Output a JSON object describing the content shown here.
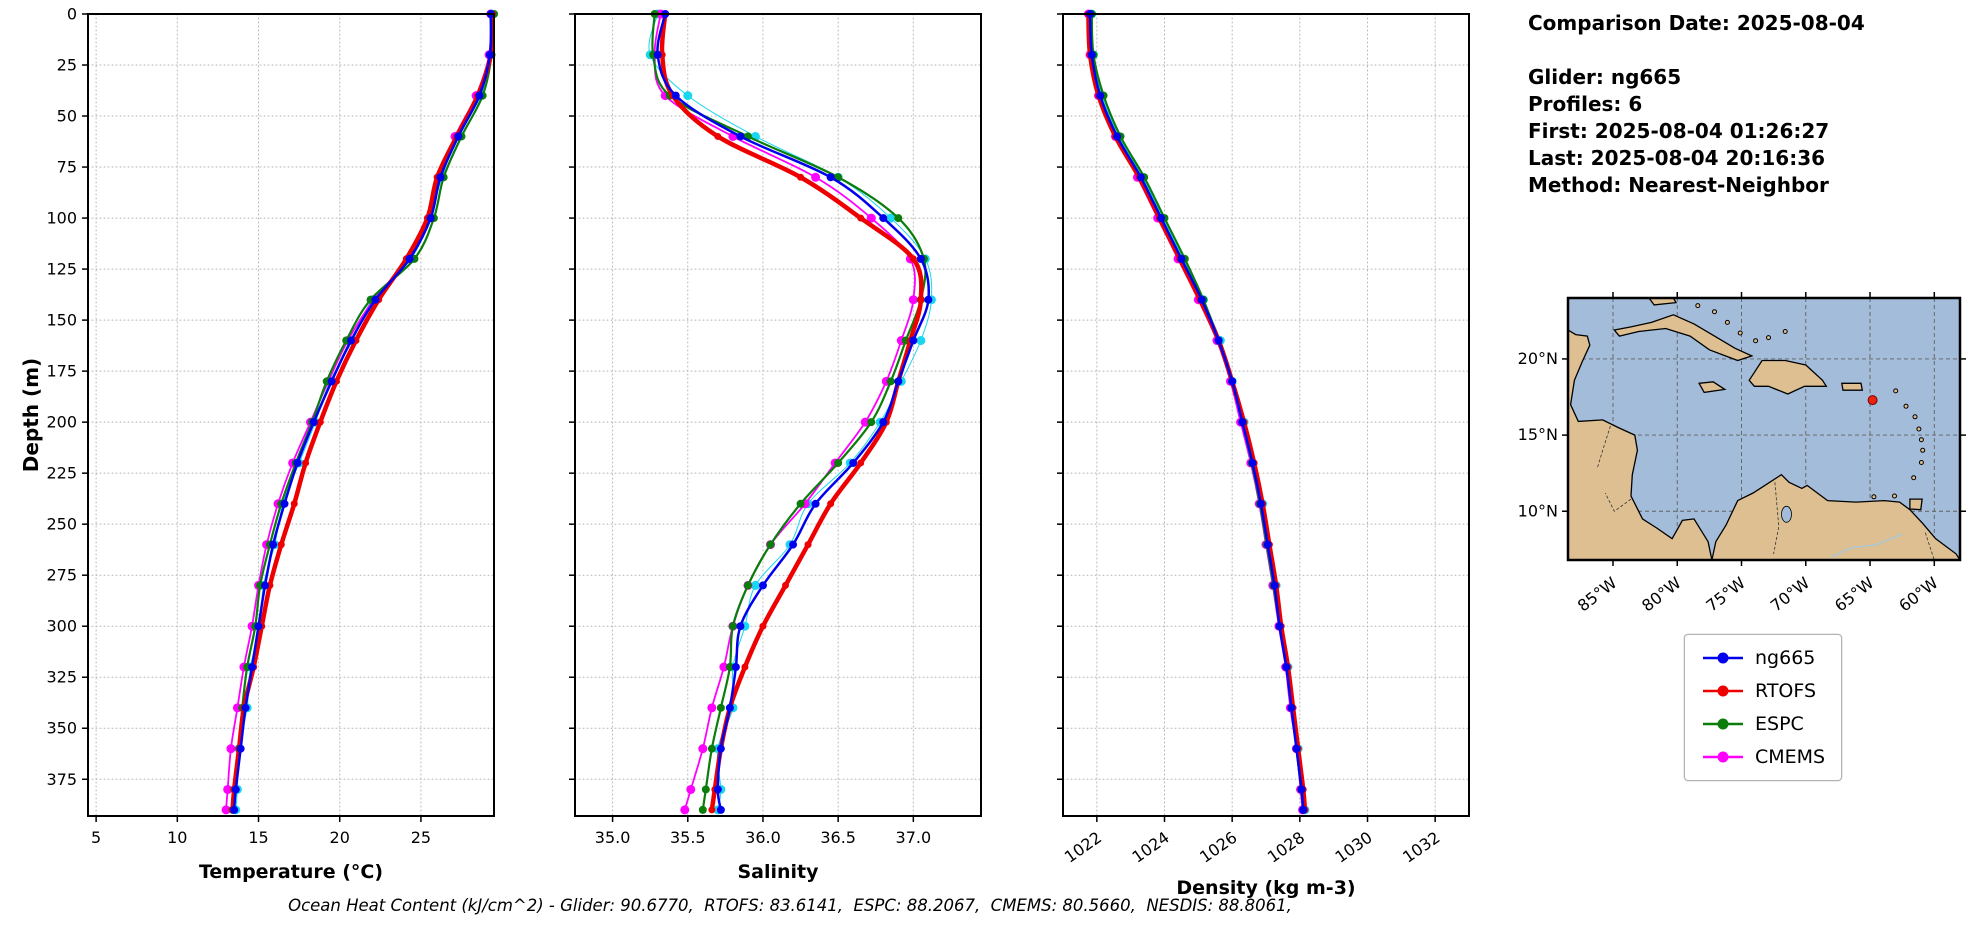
{
  "info_panel": {
    "lines": [
      "Comparison Date: 2025-08-04",
      "",
      "Glider: ng665",
      "Profiles: 6",
      "First: 2025-08-04 01:26:27",
      "Last: 2025-08-04 20:16:36",
      "Method: Nearest-Neighbor"
    ]
  },
  "footer": {
    "text": "Ocean Heat Content (kJ/cm^2) - Glider: 90.6770,  RTOFS: 83.6141,  ESPC: 88.2067,  CMEMS: 80.5660,  NESDIS: 88.8061,"
  },
  "legend": {
    "items": [
      {
        "label": "ng665",
        "color": "#0000ee"
      },
      {
        "label": "RTOFS",
        "color": "#ee0000"
      },
      {
        "label": "ESPC",
        "color": "#0a7d0a"
      },
      {
        "label": "CMEMS",
        "color": "#ff00ff"
      }
    ]
  },
  "depth_axis": {
    "label": "Depth (m)",
    "max": 393,
    "ticks": [
      0,
      25,
      50,
      75,
      100,
      125,
      150,
      175,
      200,
      225,
      250,
      275,
      300,
      325,
      350,
      375
    ]
  },
  "map": {
    "colors": {
      "ocean": "#a3bcd9",
      "land": "#ddbf92"
    },
    "lat_ticks": [
      {
        "value": 20,
        "label": "20°N"
      },
      {
        "value": 15,
        "label": "15°N"
      },
      {
        "value": 10,
        "label": "10°N"
      }
    ],
    "lon_ticks": [
      {
        "value": -85,
        "label": "85°W"
      },
      {
        "value": -80,
        "label": "80°W"
      },
      {
        "value": -75,
        "label": "75°W"
      },
      {
        "value": -70,
        "label": "70°W"
      },
      {
        "value": -65,
        "label": "65°W"
      },
      {
        "value": -60,
        "label": "60°W"
      }
    ],
    "marker": {
      "lon": -64.8,
      "lat": 17.3,
      "color": "#e8240f"
    }
  },
  "chart_data": [
    {
      "id": "temperature",
      "type": "line",
      "xlabel": "Temperature (°C)",
      "ylabel": "Depth (m)",
      "y_inverted": true,
      "ylim": [
        0,
        393
      ],
      "xlim": [
        4.5,
        29.5
      ],
      "x_ticks": {
        "values": [
          5,
          10,
          15,
          20,
          25
        ],
        "labels": [
          "5",
          "10",
          "15",
          "20",
          "25"
        ],
        "rotate": 0
      },
      "depths": [
        0,
        20,
        40,
        60,
        80,
        100,
        120,
        140,
        160,
        180,
        200,
        220,
        240,
        260,
        280,
        300,
        320,
        340,
        360,
        380,
        390
      ],
      "series": [
        {
          "name": "glider-raw",
          "color": "#18d7ee",
          "line_width": 1,
          "marker_r": 4.5,
          "values": [
            29.35,
            29.2,
            28.7,
            27.2,
            26.3,
            25.5,
            24.4,
            22.0,
            20.8,
            19.4,
            18.5,
            17.5,
            16.5,
            16.0,
            15.3,
            15.1,
            14.5,
            14.3,
            13.8,
            13.7,
            13.6
          ]
        },
        {
          "name": "CMEMS",
          "color": "#ff00ff",
          "line_width": 1.8,
          "marker_r": 4.5,
          "values": [
            29.3,
            29.2,
            28.4,
            27.1,
            26.1,
            25.5,
            24.2,
            22.1,
            20.5,
            19.3,
            18.2,
            17.1,
            16.2,
            15.5,
            15.0,
            14.6,
            14.1,
            13.7,
            13.3,
            13.1,
            13.0
          ]
        },
        {
          "name": "ESPC",
          "color": "#0a7d0a",
          "line_width": 2.2,
          "marker_r": 4,
          "values": [
            29.5,
            29.35,
            28.8,
            27.5,
            26.4,
            25.8,
            24.6,
            21.9,
            20.4,
            19.2,
            18.3,
            17.3,
            16.4,
            15.7,
            15.1,
            14.8,
            14.3,
            14.0,
            13.8,
            13.5,
            13.4
          ]
        },
        {
          "name": "RTOFS",
          "color": "#ee0000",
          "line_width": 4.5,
          "marker_r": 3.5,
          "values": [
            29.4,
            29.3,
            28.5,
            27.2,
            26.0,
            25.4,
            24.1,
            22.4,
            21.0,
            19.8,
            18.8,
            17.9,
            17.2,
            16.4,
            15.7,
            15.2,
            14.7,
            14.1,
            13.8,
            13.5,
            13.4
          ]
        },
        {
          "name": "ng665",
          "color": "#0000ee",
          "line_width": 2.5,
          "marker_r": 4,
          "values": [
            29.3,
            29.25,
            28.6,
            27.3,
            26.2,
            25.6,
            24.3,
            22.2,
            20.7,
            19.5,
            18.4,
            17.4,
            16.6,
            15.9,
            15.4,
            15.0,
            14.6,
            14.2,
            13.9,
            13.6,
            13.5
          ]
        }
      ]
    },
    {
      "id": "salinity",
      "type": "line",
      "xlabel": "Salinity",
      "ylabel": "Depth (m)",
      "y_inverted": true,
      "ylim": [
        0,
        393
      ],
      "xlim": [
        34.75,
        37.45
      ],
      "x_ticks": {
        "values": [
          35.0,
          35.5,
          36.0,
          36.5,
          37.0
        ],
        "labels": [
          "35.0",
          "35.5",
          "36.0",
          "36.5",
          "37.0"
        ],
        "rotate": 0
      },
      "depths": [
        0,
        20,
        40,
        60,
        80,
        100,
        120,
        140,
        160,
        180,
        200,
        220,
        240,
        260,
        280,
        300,
        320,
        340,
        360,
        380,
        390
      ],
      "series": [
        {
          "name": "glider-raw",
          "color": "#18d7ee",
          "line_width": 1,
          "marker_r": 4.5,
          "values": [
            35.3,
            35.25,
            35.5,
            35.95,
            36.5,
            36.85,
            37.08,
            37.12,
            37.05,
            36.92,
            36.78,
            36.58,
            36.3,
            36.18,
            35.95,
            35.88,
            35.8,
            35.8,
            35.7,
            35.72,
            35.7
          ]
        },
        {
          "name": "CMEMS",
          "color": "#ff00ff",
          "line_width": 1.8,
          "marker_r": 4.5,
          "values": [
            35.32,
            35.28,
            35.35,
            35.8,
            36.35,
            36.72,
            36.98,
            37.0,
            36.92,
            36.82,
            36.68,
            36.48,
            36.28,
            36.05,
            35.9,
            35.8,
            35.74,
            35.66,
            35.6,
            35.52,
            35.48
          ]
        },
        {
          "name": "ESPC",
          "color": "#0a7d0a",
          "line_width": 2.2,
          "marker_r": 4,
          "values": [
            35.28,
            35.27,
            35.38,
            35.9,
            36.5,
            36.9,
            37.07,
            37.05,
            36.95,
            36.85,
            36.72,
            36.5,
            36.25,
            36.05,
            35.9,
            35.8,
            35.78,
            35.72,
            35.66,
            35.62,
            35.6
          ]
        },
        {
          "name": "RTOFS",
          "color": "#ee0000",
          "line_width": 4.5,
          "marker_r": 3.5,
          "values": [
            35.35,
            35.33,
            35.4,
            35.7,
            36.25,
            36.65,
            37.0,
            37.05,
            36.98,
            36.9,
            36.82,
            36.65,
            36.45,
            36.3,
            36.15,
            36.0,
            35.88,
            35.78,
            35.72,
            35.68,
            35.66
          ]
        },
        {
          "name": "ng665",
          "color": "#0000ee",
          "line_width": 2.5,
          "marker_r": 4,
          "values": [
            35.35,
            35.3,
            35.42,
            35.85,
            36.45,
            36.8,
            37.05,
            37.1,
            37.0,
            36.9,
            36.8,
            36.6,
            36.35,
            36.2,
            36.0,
            35.85,
            35.82,
            35.78,
            35.72,
            35.7,
            35.72
          ]
        }
      ]
    },
    {
      "id": "density",
      "type": "line",
      "xlabel": "Density (kg m-3)",
      "ylabel": "Depth (m)",
      "y_inverted": true,
      "ylim": [
        0,
        393
      ],
      "xlim": [
        1021,
        1033
      ],
      "x_ticks": {
        "values": [
          1022,
          1024,
          1026,
          1028,
          1030,
          1032
        ],
        "labels": [
          "1022",
          "1024",
          "1026",
          "1028",
          "1030",
          "1032"
        ],
        "rotate": -35
      },
      "depths": [
        0,
        20,
        40,
        60,
        80,
        100,
        120,
        140,
        160,
        180,
        200,
        220,
        240,
        260,
        280,
        300,
        320,
        340,
        360,
        380,
        390
      ],
      "series": [
        {
          "name": "glider-raw",
          "color": "#18d7ee",
          "line_width": 1,
          "marker_r": 4.5,
          "values": [
            1021.85,
            1021.9,
            1022.15,
            1022.65,
            1023.35,
            1023.95,
            1024.55,
            1025.15,
            1025.65,
            1026.0,
            1026.35,
            1026.6,
            1026.9,
            1027.05,
            1027.3,
            1027.4,
            1027.65,
            1027.75,
            1027.95,
            1028.05,
            1028.15
          ]
        },
        {
          "name": "CMEMS",
          "color": "#ff00ff",
          "line_width": 1.8,
          "marker_r": 4.5,
          "values": [
            1021.75,
            1021.8,
            1022.05,
            1022.55,
            1023.2,
            1023.8,
            1024.4,
            1025.0,
            1025.55,
            1025.95,
            1026.25,
            1026.55,
            1026.8,
            1027.0,
            1027.2,
            1027.38,
            1027.58,
            1027.72,
            1027.9,
            1028.02,
            1028.08
          ]
        },
        {
          "name": "ESPC",
          "color": "#0a7d0a",
          "line_width": 2.2,
          "marker_r": 4,
          "values": [
            1021.85,
            1021.9,
            1022.2,
            1022.7,
            1023.4,
            1024.0,
            1024.6,
            1025.15,
            1025.6,
            1026.0,
            1026.3,
            1026.58,
            1026.82,
            1027.02,
            1027.22,
            1027.4,
            1027.6,
            1027.76,
            1027.9,
            1028.04,
            1028.1
          ]
        },
        {
          "name": "RTOFS",
          "color": "#ee0000",
          "line_width": 4.5,
          "marker_r": 3.5,
          "values": [
            1021.75,
            1021.8,
            1022.05,
            1022.55,
            1023.25,
            1023.85,
            1024.45,
            1025.05,
            1025.6,
            1026.0,
            1026.35,
            1026.65,
            1026.9,
            1027.1,
            1027.3,
            1027.45,
            1027.65,
            1027.8,
            1027.95,
            1028.1,
            1028.15
          ]
        },
        {
          "name": "ng665",
          "color": "#0000ee",
          "line_width": 2.5,
          "marker_r": 4,
          "values": [
            1021.8,
            1021.85,
            1022.1,
            1022.6,
            1023.3,
            1023.9,
            1024.5,
            1025.1,
            1025.6,
            1026.0,
            1026.3,
            1026.6,
            1026.85,
            1027.05,
            1027.25,
            1027.4,
            1027.6,
            1027.75,
            1027.9,
            1028.05,
            1028.1
          ]
        }
      ]
    }
  ]
}
